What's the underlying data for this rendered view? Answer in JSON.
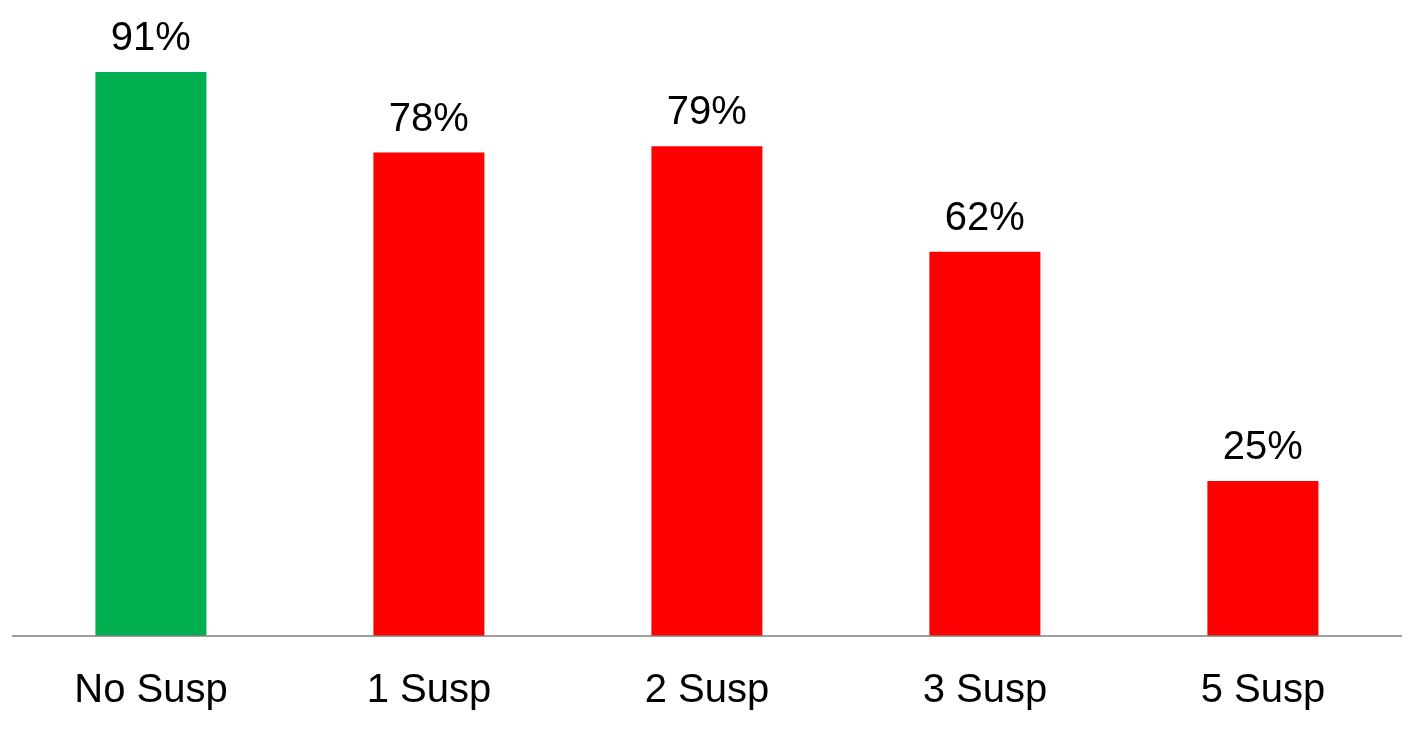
{
  "chart_data": {
    "type": "bar",
    "categories": [
      "No Susp",
      "1 Susp",
      "2 Susp",
      "3 Susp",
      "5 Susp"
    ],
    "values": [
      91,
      78,
      79,
      62,
      25
    ],
    "colors": [
      "#00b050",
      "#ff0000",
      "#ff0000",
      "#ff0000",
      "#ff0000"
    ],
    "value_labels": [
      "91%",
      "78%",
      "79%",
      "62%",
      "25%"
    ]
  }
}
